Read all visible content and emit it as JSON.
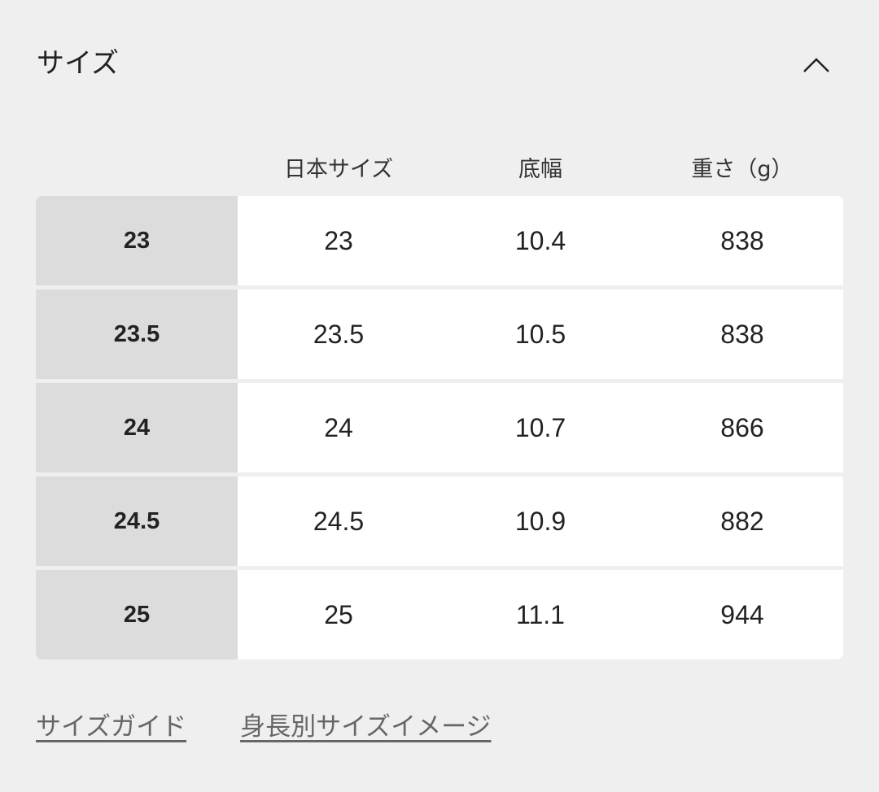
{
  "section": {
    "title": "サイズ",
    "expanded": true,
    "toggle_icon": "chevron-up-icon"
  },
  "table": {
    "headers": [
      "日本サイズ",
      "底幅",
      "重さ（g）"
    ],
    "rows": [
      {
        "size": "23",
        "jp": "23",
        "width": "10.4",
        "weight": "838"
      },
      {
        "size": "23.5",
        "jp": "23.5",
        "width": "10.5",
        "weight": "838"
      },
      {
        "size": "24",
        "jp": "24",
        "width": "10.7",
        "weight": "866"
      },
      {
        "size": "24.5",
        "jp": "24.5",
        "width": "10.9",
        "weight": "882"
      },
      {
        "size": "25",
        "jp": "25",
        "width": "11.1",
        "weight": "944"
      }
    ]
  },
  "links": {
    "size_guide": "サイズガイド",
    "height_image": "身長別サイズイメージ"
  }
}
